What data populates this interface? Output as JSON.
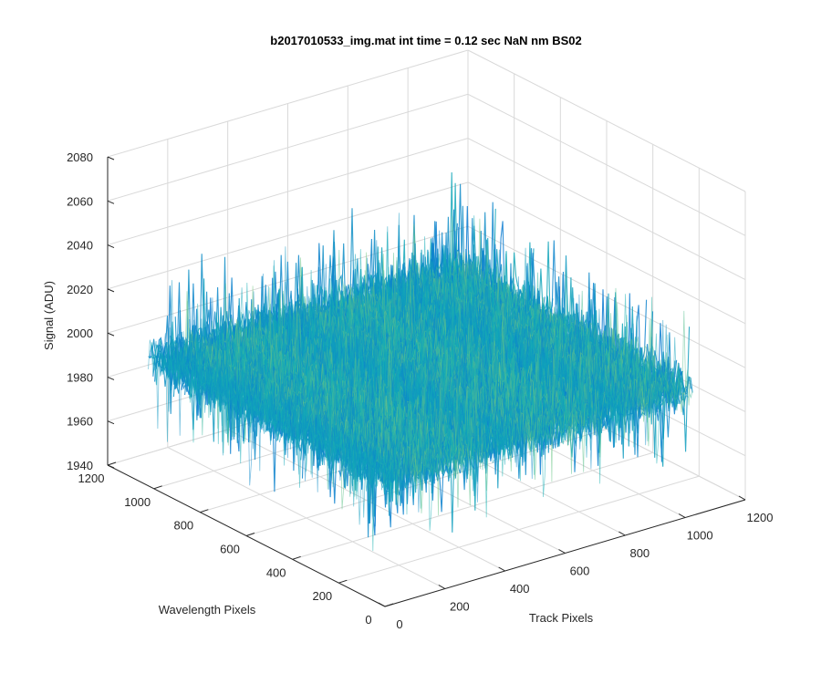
{
  "chart_data": {
    "type": "surface",
    "title": "b2017010533_img.mat int time = 0.12 sec  NaN nm BS02",
    "xlabel": "Track Pixels",
    "ylabel": "Wavelength Pixels",
    "zlabel": "Signal (ADU)",
    "xlim": [
      0,
      1200
    ],
    "ylim": [
      0,
      1200
    ],
    "zlim": [
      1940,
      2080
    ],
    "xticks": [
      0,
      200,
      400,
      600,
      800,
      1000,
      1200
    ],
    "yticks": [
      0,
      200,
      400,
      600,
      800,
      1000,
      1200
    ],
    "zticks": [
      1940,
      1960,
      1980,
      2000,
      2020,
      2040,
      2060,
      2080
    ],
    "xtick_labels": [
      "0",
      "200",
      "400",
      "600",
      "800",
      "1000",
      "1200"
    ],
    "ytick_labels": [
      "0",
      "200",
      "400",
      "600",
      "800",
      "1000",
      "1200"
    ],
    "ztick_labels": [
      "1940",
      "1960",
      "1980",
      "2000",
      "2020",
      "2040",
      "2060",
      "2080"
    ],
    "data_extent": {
      "x": [
        0,
        1024
      ],
      "y": [
        0,
        1024
      ]
    },
    "signal_mean": 1998,
    "signal_noise_range": [
      1948,
      2075
    ],
    "colormap": "parula",
    "grid": true,
    "colors": {
      "low": "#0a72d6",
      "mid": "#14b0b4",
      "high": "#d2dc4e",
      "axis": "#262626",
      "grid": "#d9d9d9"
    }
  }
}
